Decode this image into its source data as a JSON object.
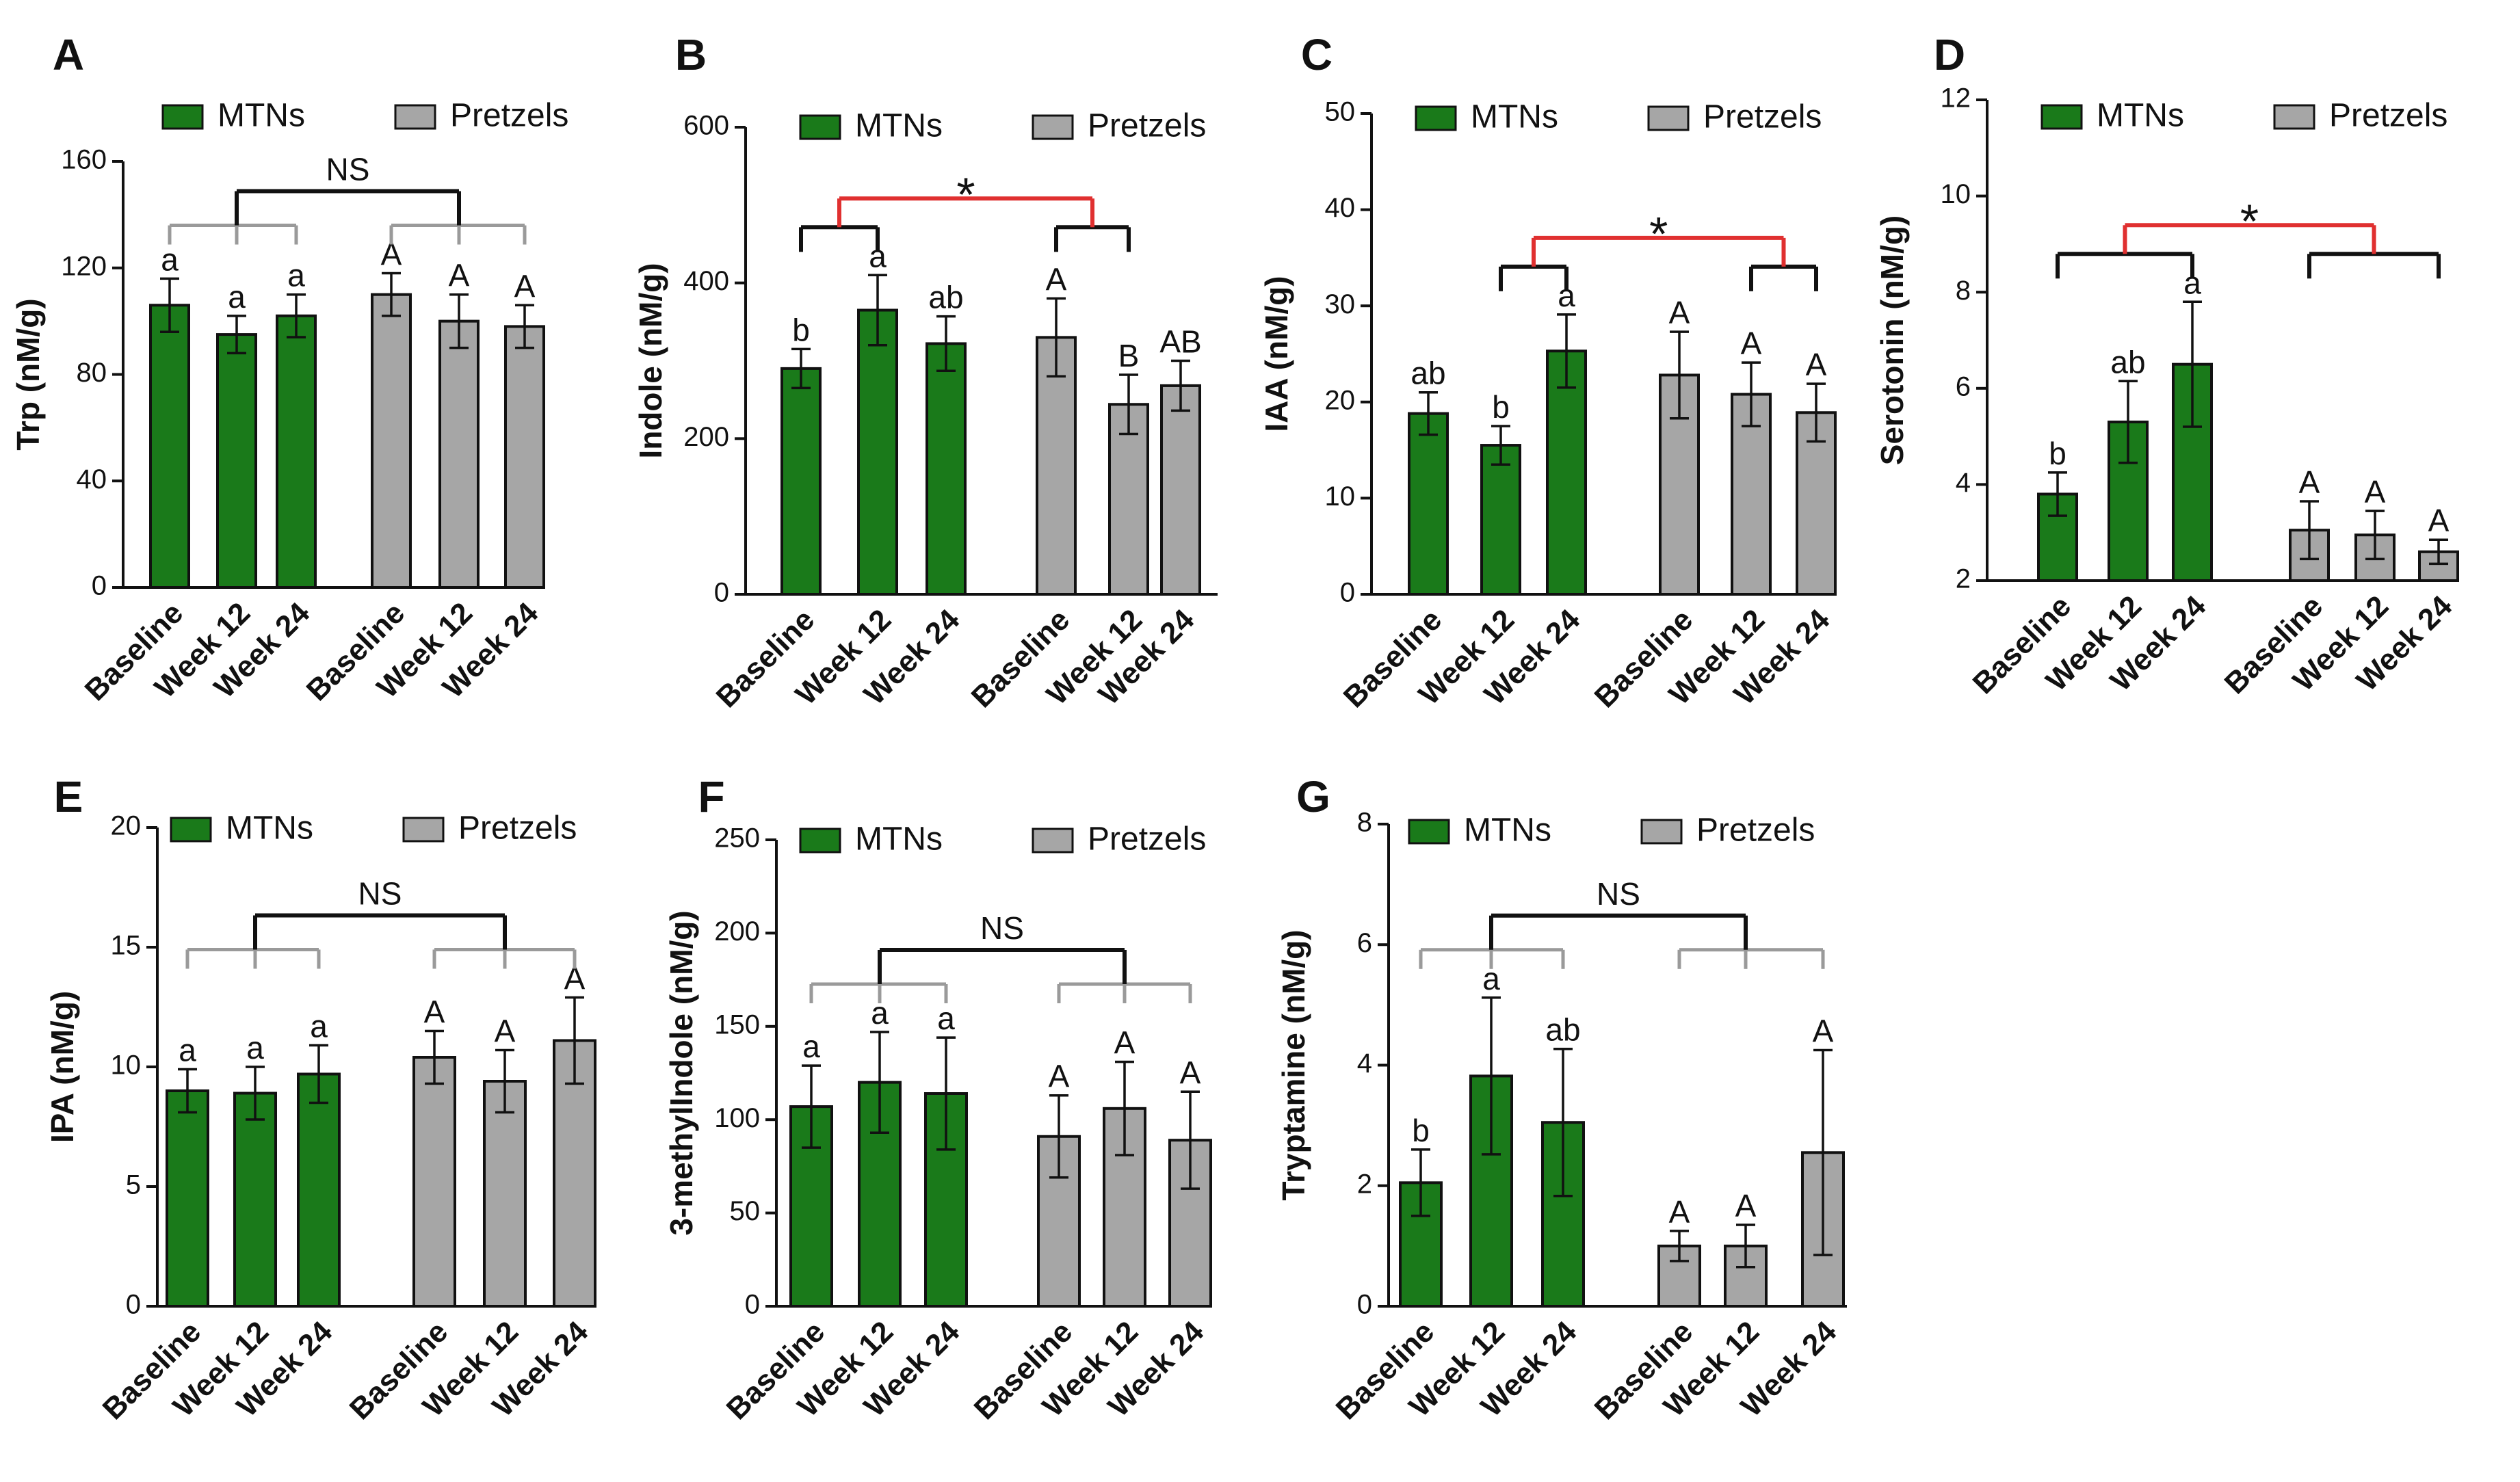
{
  "colors": {
    "mtns_fill": "#1a7a1a",
    "pretzels_fill": "#a6a6a6",
    "bar_stroke": "#111111",
    "bracket_black": "#111111",
    "bracket_gray": "#9a9a9a",
    "bracket_red": "#e03030"
  },
  "chart_data": [
    {
      "panel": "A",
      "type": "bar",
      "ylabel": "Trp (nM/g)",
      "ylim": [
        0,
        160
      ],
      "yticks": [
        0,
        40,
        80,
        120,
        160
      ],
      "categories": [
        "Baseline",
        "Week 12",
        "Week 24"
      ],
      "legend": [
        "MTNs",
        "Pretzels"
      ],
      "series": [
        {
          "name": "MTNs",
          "values": [
            106,
            95,
            102
          ],
          "errors": [
            10,
            7,
            8
          ],
          "letters": [
            "a",
            "a",
            "a"
          ]
        },
        {
          "name": "Pretzels",
          "values": [
            110,
            100,
            98
          ],
          "errors": [
            8,
            10,
            8
          ],
          "letters": [
            "A",
            "A",
            "A"
          ]
        }
      ],
      "comparison": {
        "label": "NS",
        "style": "NS"
      }
    },
    {
      "panel": "B",
      "type": "bar",
      "ylabel": "Indole (nM/g)",
      "ylim": [
        0,
        600
      ],
      "yticks": [
        0,
        200,
        400,
        600
      ],
      "categories": [
        "Baseline",
        "Week 12",
        "Week 24"
      ],
      "legend": [
        "MTNs",
        "Pretzels"
      ],
      "series": [
        {
          "name": "MTNs",
          "values": [
            290,
            365,
            322
          ],
          "errors": [
            25,
            45,
            35
          ],
          "letters": [
            "b",
            "a",
            "ab"
          ]
        },
        {
          "name": "Pretzels",
          "values": [
            330,
            244,
            268
          ],
          "errors": [
            50,
            38,
            32
          ],
          "letters": [
            "A",
            "B",
            "AB"
          ]
        }
      ],
      "comparison": {
        "label": "*",
        "style": "sig_pairs",
        "pair_mtns": [
          0,
          1
        ],
        "pair_pretzels": [
          0,
          1
        ]
      }
    },
    {
      "panel": "C",
      "type": "bar",
      "ylabel": "IAA (nM/g)",
      "ylim": [
        0,
        50
      ],
      "yticks": [
        0,
        10,
        20,
        30,
        40,
        50
      ],
      "categories": [
        "Baseline",
        "Week 12",
        "Week 24"
      ],
      "legend": [
        "MTNs",
        "Pretzels"
      ],
      "series": [
        {
          "name": "MTNs",
          "values": [
            18.8,
            15.5,
            25.3
          ],
          "errors": [
            2.2,
            2,
            3.8
          ],
          "letters": [
            "ab",
            "b",
            "a"
          ]
        },
        {
          "name": "Pretzels",
          "values": [
            22.8,
            20.8,
            18.9
          ],
          "errors": [
            4.5,
            3.3,
            3
          ],
          "letters": [
            "A",
            "A",
            "A"
          ]
        }
      ],
      "comparison": {
        "label": "*",
        "style": "sig_pairs",
        "pair_mtns": [
          1,
          2
        ],
        "pair_pretzels": [
          1,
          2
        ]
      }
    },
    {
      "panel": "D",
      "type": "bar",
      "ylabel": "Serotonin (nM/g)",
      "ylim": [
        2,
        12
      ],
      "yticks": [
        2,
        4,
        6,
        8,
        10,
        12
      ],
      "categories": [
        "Baseline",
        "Week 12",
        "Week 24"
      ],
      "legend": [
        "MTNs",
        "Pretzels"
      ],
      "series": [
        {
          "name": "MTNs",
          "values": [
            3.8,
            5.3,
            6.5
          ],
          "errors": [
            0.45,
            0.85,
            1.3
          ],
          "letters": [
            "b",
            "ab",
            "a"
          ]
        },
        {
          "name": "Pretzels",
          "values": [
            3.05,
            2.95,
            2.6
          ],
          "errors": [
            0.6,
            0.5,
            0.25
          ],
          "letters": [
            "A",
            "A",
            "A"
          ]
        }
      ],
      "comparison": {
        "label": "*",
        "style": "sig_pairs",
        "pair_mtns": [
          0,
          2
        ],
        "pair_pretzels": [
          0,
          2
        ]
      }
    },
    {
      "panel": "E",
      "type": "bar",
      "ylabel": "IPA (nM/g)",
      "ylim": [
        0,
        20
      ],
      "yticks": [
        0,
        5,
        10,
        15,
        20
      ],
      "categories": [
        "Baseline",
        "Week 12",
        "Week 24"
      ],
      "legend": [
        "MTNs",
        "Pretzels"
      ],
      "series": [
        {
          "name": "MTNs",
          "values": [
            9,
            8.9,
            9.7
          ],
          "errors": [
            0.9,
            1.1,
            1.2
          ],
          "letters": [
            "a",
            "a",
            "a"
          ]
        },
        {
          "name": "Pretzels",
          "values": [
            10.4,
            9.4,
            11.1
          ],
          "errors": [
            1.1,
            1.3,
            1.8
          ],
          "letters": [
            "A",
            "A",
            "A"
          ]
        }
      ],
      "comparison": {
        "label": "NS",
        "style": "NS"
      }
    },
    {
      "panel": "F",
      "type": "bar",
      "ylabel": "3-methylIndole (nM/g)",
      "ylim": [
        0,
        250
      ],
      "yticks": [
        0,
        50,
        100,
        150,
        200,
        250
      ],
      "categories": [
        "Baseline",
        "Week 12",
        "Week 24"
      ],
      "legend": [
        "MTNs",
        "Pretzels"
      ],
      "series": [
        {
          "name": "MTNs",
          "values": [
            107,
            120,
            114
          ],
          "errors": [
            22,
            27,
            30
          ],
          "letters": [
            "a",
            "a",
            "a"
          ]
        },
        {
          "name": "Pretzels",
          "values": [
            91,
            106,
            89
          ],
          "errors": [
            22,
            25,
            26
          ],
          "letters": [
            "A",
            "A",
            "A"
          ]
        }
      ],
      "comparison": {
        "label": "NS",
        "style": "NS"
      }
    },
    {
      "panel": "G",
      "type": "bar",
      "ylabel": "Tryptamine (nM/g)",
      "ylim": [
        0,
        8
      ],
      "yticks": [
        0,
        2,
        4,
        6,
        8
      ],
      "categories": [
        "Baseline",
        "Week 12",
        "Week 24"
      ],
      "legend": [
        "MTNs",
        "Pretzels"
      ],
      "series": [
        {
          "name": "MTNs",
          "values": [
            2.05,
            3.82,
            3.05
          ],
          "errors": [
            0.55,
            1.3,
            1.22
          ],
          "letters": [
            "b",
            "a",
            "ab"
          ]
        },
        {
          "name": "Pretzels",
          "values": [
            1.0,
            1.0,
            2.55
          ],
          "errors": [
            0.25,
            0.35,
            1.7
          ],
          "letters": [
            "A",
            "A",
            "A"
          ]
        }
      ],
      "comparison": {
        "label": "NS",
        "style": "NS"
      }
    }
  ]
}
